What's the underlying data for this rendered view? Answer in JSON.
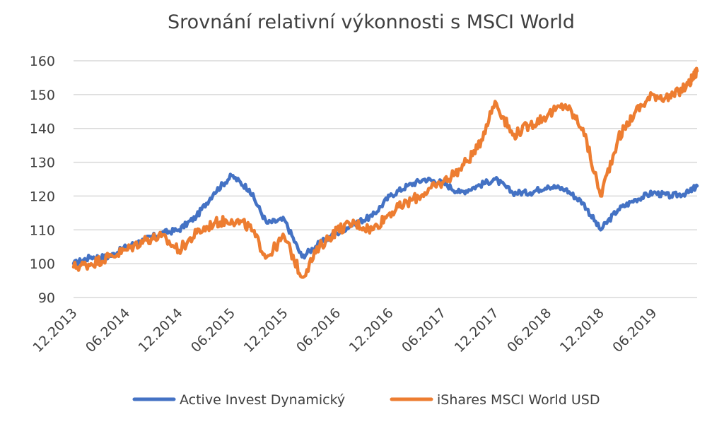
{
  "chart_data": {
    "type": "line",
    "title": "Srovnání relativní výkonnosti s MSCI World",
    "xlabel": "",
    "ylabel": "",
    "ylim": [
      90,
      160
    ],
    "yticks": [
      90,
      100,
      110,
      120,
      130,
      140,
      150,
      160
    ],
    "xticks": [
      "12.2013",
      "06.2014",
      "12.2014",
      "06.2015",
      "12.2015",
      "06.2016",
      "12.2016",
      "06.2017",
      "12.2017",
      "06.2018",
      "12.2018",
      "06.2019"
    ],
    "grid": "horizontal",
    "legend_position": "bottom",
    "x": [
      "12.2013",
      "02.2014",
      "04.2014",
      "06.2014",
      "08.2014",
      "10.2014",
      "12.2014",
      "02.2015",
      "04.2015",
      "06.2015",
      "08.2015",
      "10.2015",
      "12.2015",
      "02.2016",
      "04.2016",
      "06.2016",
      "08.2016",
      "10.2016",
      "12.2016",
      "02.2017",
      "04.2017",
      "06.2017",
      "08.2017",
      "10.2017",
      "12.2017",
      "02.2018",
      "04.2018",
      "06.2018",
      "08.2018",
      "10.2018",
      "12.2018",
      "02.2019",
      "04.2019",
      "06.2019",
      "08.2019",
      "10.2019",
      "11.2019"
    ],
    "series": [
      {
        "name": "Active Invest Dynamický",
        "color": "#4472C4",
        "values": [
          100,
          102,
          102,
          105,
          107,
          109,
          110,
          114,
          121,
          126,
          122,
          112,
          113,
          102,
          106,
          109,
          112,
          114,
          120,
          123,
          125,
          124,
          121,
          123,
          125,
          121,
          121,
          123,
          122,
          118,
          110,
          116,
          119,
          121,
          120,
          121,
          123
        ]
      },
      {
        "name": "iShares MSCI World USD",
        "color": "#ED7D31",
        "values": [
          99,
          100,
          102,
          104,
          107,
          108,
          104,
          109,
          112,
          113,
          111,
          102,
          108,
          96,
          105,
          110,
          112,
          110,
          115,
          118,
          121,
          124,
          128,
          134,
          148,
          138,
          141,
          144,
          147,
          140,
          120,
          137,
          145,
          150,
          149,
          153,
          157
        ]
      }
    ]
  }
}
